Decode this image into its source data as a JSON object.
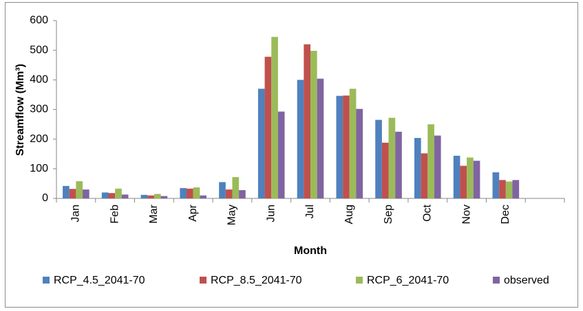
{
  "chart_data": {
    "type": "bar",
    "x_label": "Month",
    "y_label": "Streamflow (Mm³)",
    "categories": [
      "Jan",
      "Feb",
      "Mar",
      "Apr",
      "May",
      "Jun",
      "Jul",
      "Aug",
      "Sep",
      "Oct",
      "Nov",
      "Dec",
      null
    ],
    "series": [
      {
        "name": "RCP_4.5_2041-70",
        "color": "#4f81bd",
        "values": [
          42,
          20,
          12,
          35,
          55,
          370,
          400,
          346,
          265,
          204,
          144,
          88,
          null
        ]
      },
      {
        "name": "RCP_8.5_2041-70",
        "color": "#c0504d",
        "values": [
          32,
          18,
          10,
          33,
          30,
          478,
          520,
          347,
          188,
          152,
          110,
          62,
          null
        ]
      },
      {
        "name": "RCP_6_2041-70",
        "color": "#9bbb59",
        "values": [
          58,
          33,
          15,
          37,
          72,
          545,
          498,
          370,
          272,
          250,
          138,
          57,
          null
        ]
      },
      {
        "name": "observed",
        "color": "#8064a2",
        "values": [
          30,
          13,
          8,
          10,
          28,
          293,
          404,
          302,
          225,
          212,
          127,
          62,
          null
        ]
      }
    ],
    "ylim": [
      0,
      600
    ],
    "yticks": [
      0,
      100,
      200,
      300,
      400,
      500,
      600
    ],
    "legend": "bottom"
  }
}
